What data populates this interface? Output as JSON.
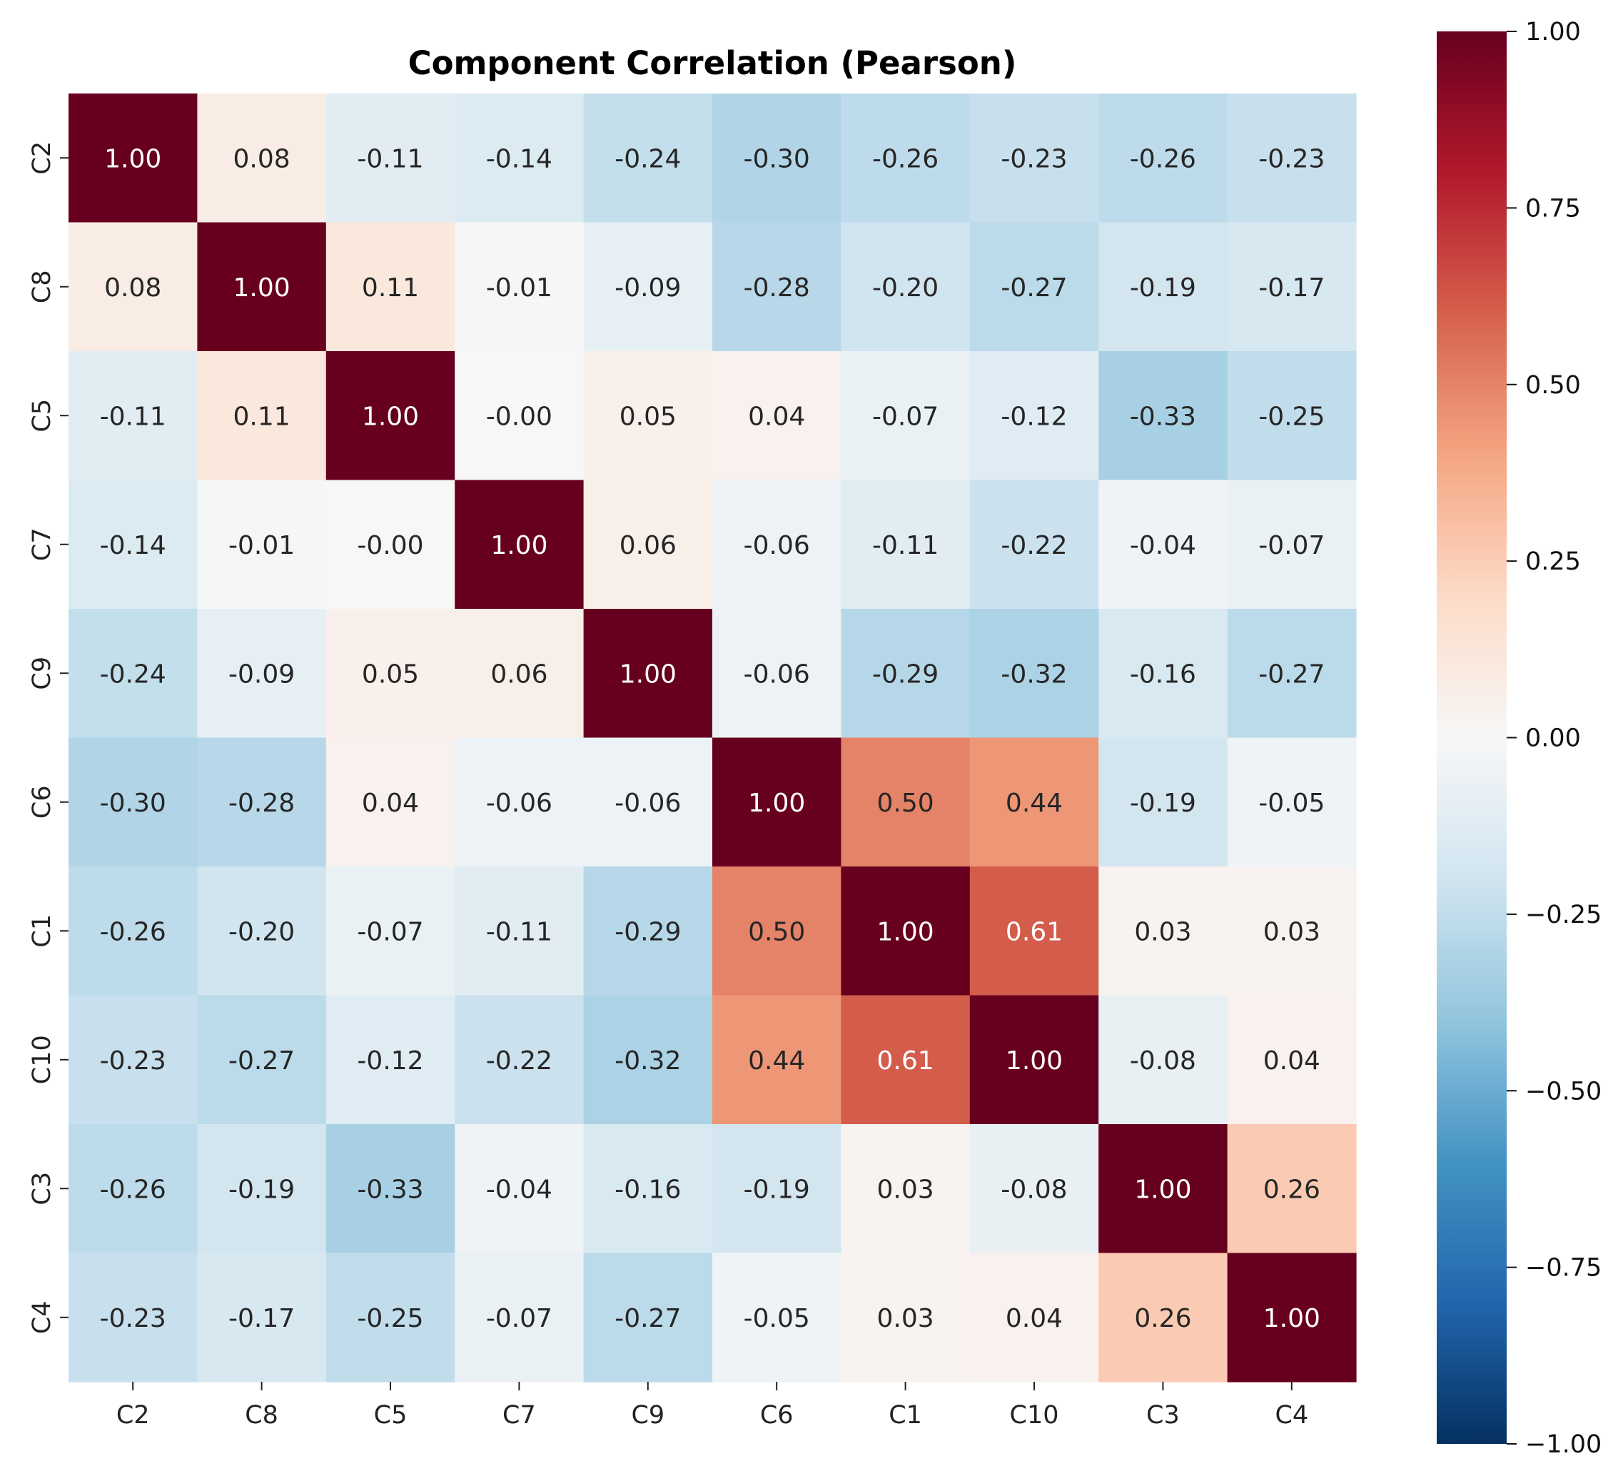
{
  "chart_data": {
    "type": "heatmap",
    "title": "Component Correlation (Pearson)",
    "xlabel": "",
    "ylabel": "",
    "labels": [
      "C2",
      "C8",
      "C5",
      "C7",
      "C9",
      "C6",
      "C1",
      "C10",
      "C3",
      "C4"
    ],
    "x_tick_labels": [
      "C2",
      "C8",
      "C5",
      "C7",
      "C9",
      "C6",
      "C1",
      "C10",
      "C3",
      "C4"
    ],
    "y_tick_labels": [
      "C2",
      "C8",
      "C5",
      "C7",
      "C9",
      "C6",
      "C1",
      "C10",
      "C3",
      "C4"
    ],
    "matrix": [
      [
        1.0,
        0.08,
        -0.11,
        -0.14,
        -0.24,
        -0.3,
        -0.26,
        -0.23,
        -0.26,
        -0.23
      ],
      [
        0.08,
        1.0,
        0.11,
        -0.01,
        -0.09,
        -0.28,
        -0.2,
        -0.27,
        -0.19,
        -0.17
      ],
      [
        -0.11,
        0.11,
        1.0,
        -0.0,
        0.05,
        0.04,
        -0.07,
        -0.12,
        -0.33,
        -0.25
      ],
      [
        -0.14,
        -0.01,
        -0.0,
        1.0,
        0.06,
        -0.06,
        -0.11,
        -0.22,
        -0.04,
        -0.07
      ],
      [
        -0.24,
        -0.09,
        0.05,
        0.06,
        1.0,
        -0.06,
        -0.29,
        -0.32,
        -0.16,
        -0.27
      ],
      [
        -0.3,
        -0.28,
        0.04,
        -0.06,
        -0.06,
        1.0,
        0.5,
        0.44,
        -0.19,
        -0.05
      ],
      [
        -0.26,
        -0.2,
        -0.07,
        -0.11,
        -0.29,
        0.5,
        1.0,
        0.61,
        0.03,
        0.03
      ],
      [
        -0.23,
        -0.27,
        -0.12,
        -0.22,
        -0.32,
        0.44,
        0.61,
        1.0,
        -0.08,
        0.04
      ],
      [
        -0.26,
        -0.19,
        -0.33,
        -0.04,
        -0.16,
        -0.19,
        0.03,
        -0.08,
        1.0,
        0.26
      ],
      [
        -0.23,
        -0.17,
        -0.25,
        -0.07,
        -0.27,
        -0.05,
        0.03,
        0.04,
        0.26,
        1.0
      ]
    ],
    "annotation_format": "0.00",
    "colormap": "RdBu_r",
    "vmin": -1.0,
    "vmax": 1.0,
    "colorbar": {
      "ticks": [
        1.0,
        0.75,
        0.5,
        0.25,
        0.0,
        -0.25,
        -0.5,
        -0.75,
        -1.0
      ],
      "tick_labels": [
        "1.00",
        "0.75",
        "0.50",
        "0.25",
        "0.00",
        "−0.25",
        "−0.50",
        "−0.75",
        "−1.00"
      ],
      "placement": "right"
    },
    "grid": false
  }
}
